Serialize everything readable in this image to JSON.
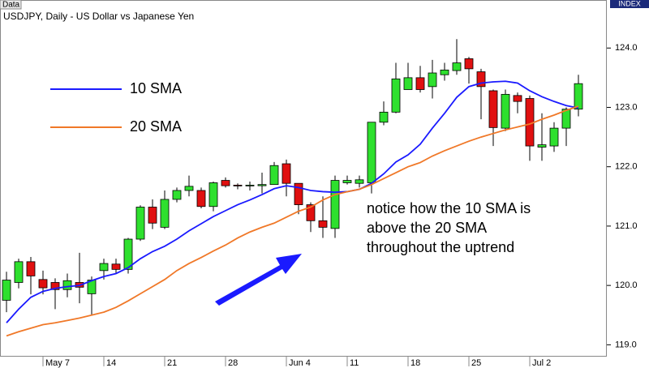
{
  "header": {
    "tag": "Data",
    "badge": "INDEX"
  },
  "chart_data": {
    "type": "candlestick",
    "title": "USDJPY, Daily - US Dollar vs Japanese Yen",
    "categories": [
      null,
      null,
      null,
      "May 7",
      null,
      null,
      null,
      null,
      "14",
      null,
      null,
      null,
      null,
      "21",
      null,
      null,
      null,
      null,
      "28",
      null,
      null,
      null,
      null,
      "Jun 4",
      null,
      null,
      null,
      null,
      "11",
      null,
      null,
      null,
      null,
      "18",
      null,
      null,
      null,
      null,
      "25",
      null,
      null,
      null,
      null,
      "Jul 2",
      null,
      null,
      null,
      null
    ],
    "open": [
      119.75,
      120.05,
      120.4,
      120.1,
      120.05,
      119.93,
      120.05,
      119.86,
      120.25,
      120.36,
      120.27,
      120.78,
      121.32,
      120.98,
      121.45,
      121.6,
      121.6,
      121.33,
      121.77,
      121.69,
      121.69,
      121.68,
      121.7,
      122.05,
      121.72,
      121.36,
      121.09,
      120.96,
      121.73,
      121.72,
      121.73,
      122.75,
      122.92,
      123.3,
      123.5,
      123.35,
      123.55,
      123.62,
      123.82,
      123.6,
      123.28,
      122.65,
      123.2,
      123.15,
      122.33,
      122.35,
      122.65,
      122.97
    ],
    "high": [
      120.23,
      120.45,
      120.48,
      120.25,
      120.12,
      120.2,
      120.55,
      120.15,
      120.45,
      120.45,
      120.8,
      121.35,
      121.45,
      121.6,
      121.65,
      121.85,
      121.65,
      121.75,
      121.82,
      121.72,
      121.75,
      121.9,
      122.08,
      122.12,
      121.72,
      121.4,
      121.5,
      121.85,
      121.85,
      121.85,
      122.75,
      123.1,
      123.75,
      123.75,
      123.7,
      123.8,
      123.75,
      124.15,
      123.85,
      123.65,
      123.3,
      123.3,
      123.25,
      123.2,
      122.9,
      122.75,
      123.0,
      123.55
    ],
    "low": [
      119.55,
      119.95,
      119.85,
      119.85,
      119.6,
      119.8,
      119.7,
      119.5,
      120.1,
      120.2,
      120.2,
      120.75,
      120.95,
      120.95,
      121.4,
      121.5,
      121.3,
      121.25,
      121.65,
      121.62,
      121.6,
      121.55,
      121.7,
      121.5,
      121.2,
      120.9,
      120.8,
      120.8,
      121.7,
      121.65,
      121.55,
      122.7,
      122.9,
      123.3,
      123.25,
      123.15,
      123.45,
      123.55,
      123.4,
      122.8,
      122.35,
      122.6,
      122.9,
      122.1,
      122.1,
      122.25,
      122.35,
      122.85
    ],
    "close": [
      120.09,
      120.4,
      120.16,
      119.96,
      119.93,
      120.08,
      119.97,
      120.09,
      120.37,
      120.27,
      120.78,
      121.32,
      121.05,
      121.45,
      121.6,
      121.67,
      121.33,
      121.73,
      121.68,
      121.68,
      121.69,
      121.7,
      122.02,
      121.72,
      121.36,
      121.09,
      120.98,
      121.77,
      121.77,
      121.78,
      122.75,
      122.92,
      123.48,
      123.5,
      123.3,
      123.58,
      123.63,
      123.75,
      123.65,
      123.35,
      122.66,
      123.22,
      123.1,
      122.35,
      122.37,
      122.65,
      122.97,
      123.4
    ],
    "up_color": "#2ee02e",
    "down_color": "#e01010",
    "series": [
      {
        "name": "10 SMA",
        "color": "#1a1aff",
        "values": [
          119.37,
          119.6,
          119.8,
          119.9,
          119.95,
          119.98,
          120.0,
          120.08,
          120.15,
          120.2,
          120.3,
          120.45,
          120.57,
          120.66,
          120.78,
          120.92,
          121.04,
          121.16,
          121.26,
          121.36,
          121.44,
          121.53,
          121.63,
          121.68,
          121.65,
          121.6,
          121.58,
          121.57,
          121.58,
          121.62,
          121.72,
          121.88,
          122.08,
          122.2,
          122.38,
          122.65,
          122.9,
          123.17,
          123.35,
          123.41,
          123.43,
          123.44,
          123.41,
          123.28,
          123.18,
          123.1,
          123.03,
          122.99
        ]
      },
      {
        "name": "20 SMA",
        "color": "#f07828",
        "values": [
          119.15,
          119.22,
          119.28,
          119.34,
          119.37,
          119.41,
          119.45,
          119.5,
          119.55,
          119.63,
          119.74,
          119.86,
          119.98,
          120.1,
          120.25,
          120.37,
          120.47,
          120.58,
          120.68,
          120.8,
          120.9,
          120.98,
          121.05,
          121.15,
          121.25,
          121.32,
          121.44,
          121.53,
          121.58,
          121.62,
          121.7,
          121.8,
          121.9,
          122.0,
          122.07,
          122.18,
          122.27,
          122.35,
          122.43,
          122.5,
          122.56,
          122.62,
          122.67,
          122.72,
          122.8,
          122.87,
          122.95,
          123.02
        ]
      }
    ],
    "ylim": [
      118.8,
      124.7
    ],
    "yticks": [
      {
        "value": 119,
        "label": "119.0"
      },
      {
        "value": 120,
        "label": "120.0"
      },
      {
        "value": 121,
        "label": "121.0"
      },
      {
        "value": 122,
        "label": "122.0"
      },
      {
        "value": 123,
        "label": "123.0"
      },
      {
        "value": 124,
        "label": "124.0"
      }
    ],
    "grid": false,
    "annotation": [
      "notice how the 10 SMA is",
      "above the 20 SMA",
      "throughout the uptrend"
    ]
  }
}
